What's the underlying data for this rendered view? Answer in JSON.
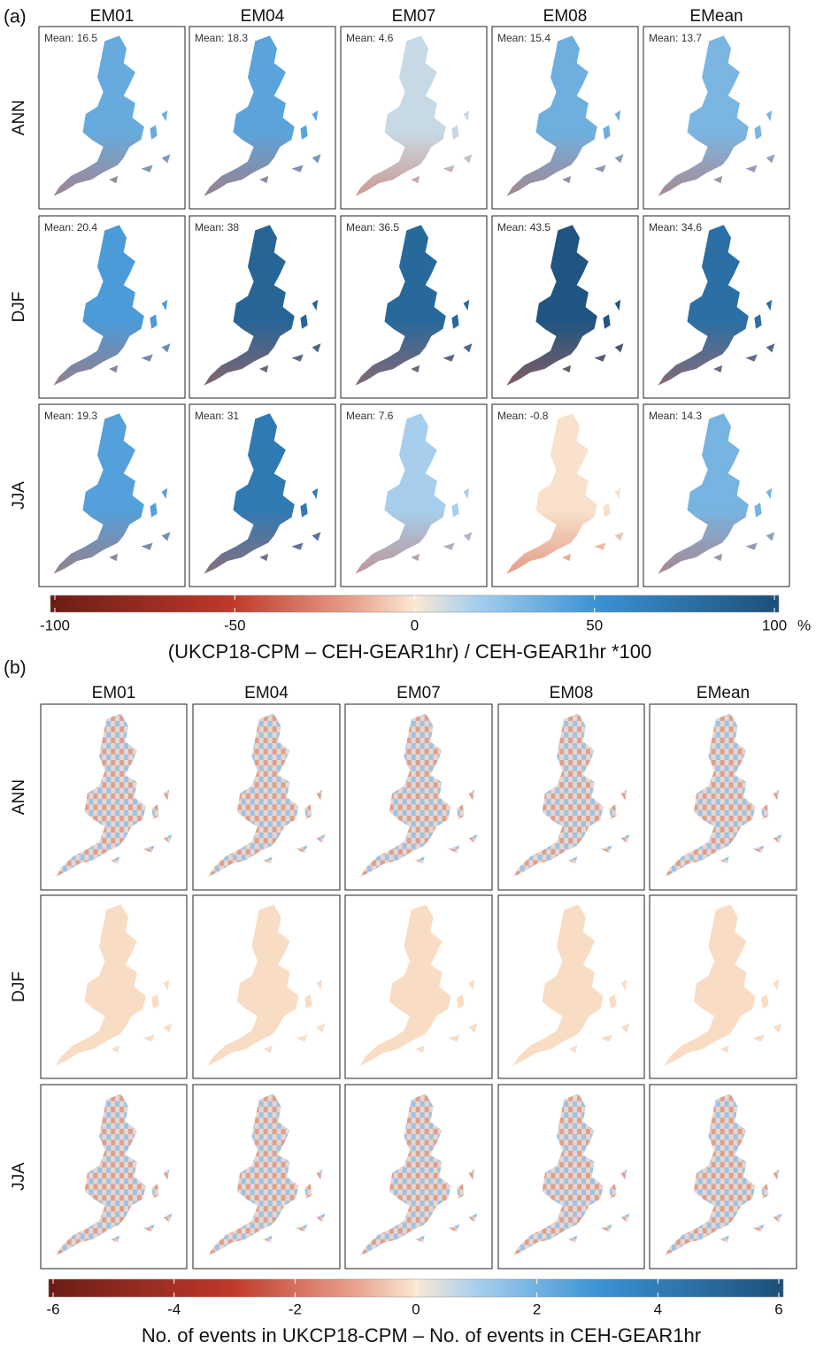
{
  "panel_a": {
    "label": "(a)",
    "columns": [
      "EM01",
      "EM04",
      "EM07",
      "EM08",
      "EMean"
    ],
    "rows": [
      "ANN",
      "DJF",
      "JJA"
    ],
    "mean_label": "Mean:",
    "means": [
      [
        16.5,
        18.3,
        4.6,
        15.4,
        13.7
      ],
      [
        20.4,
        38,
        36.5,
        43.5,
        34.6
      ],
      [
        19.3,
        31,
        7.6,
        -0.8,
        14.3
      ]
    ],
    "colorbar": {
      "lim": [
        -100,
        100
      ],
      "ticks": [
        -100,
        -50,
        0,
        50,
        100
      ],
      "unit": "%",
      "label": "(UKCP18-CPM – CEH-GEAR1hr) / CEH-GEAR1hr *100"
    }
  },
  "panel_b": {
    "label": "(b)",
    "columns": [
      "EM01",
      "EM04",
      "EM07",
      "EM08",
      "EMean"
    ],
    "rows": [
      "ANN",
      "DJF",
      "JJA"
    ],
    "colorbar": {
      "lim": [
        -6,
        6
      ],
      "ticks": [
        -6,
        -4,
        -2,
        0,
        2,
        4,
        6
      ],
      "label": "No. of events in UKCP18-CPM – No. of events in CEH-GEAR1hr"
    }
  }
}
